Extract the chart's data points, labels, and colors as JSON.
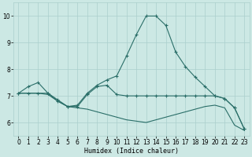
{
  "xlabel": "Humidex (Indice chaleur)",
  "x_ticks": [
    0,
    1,
    2,
    3,
    4,
    5,
    6,
    7,
    8,
    9,
    10,
    11,
    12,
    13,
    14,
    15,
    16,
    17,
    18,
    19,
    20,
    21,
    22,
    23
  ],
  "ylim": [
    5.5,
    10.5
  ],
  "xlim": [
    -0.5,
    23.5
  ],
  "yticks": [
    6,
    7,
    8,
    9,
    10
  ],
  "bg_color": "#cce8e4",
  "grid_color": "#aacfcc",
  "line_color": "#2a6e68",
  "line1_x": [
    0,
    1,
    2,
    3,
    4,
    5,
    6,
    7,
    8,
    9,
    10,
    11,
    12,
    13,
    14,
    15,
    16,
    17,
    18,
    19,
    20,
    21,
    22,
    23
  ],
  "line1_y": [
    7.1,
    7.35,
    7.5,
    7.1,
    6.8,
    6.6,
    6.65,
    7.1,
    7.4,
    7.6,
    7.75,
    8.5,
    9.3,
    10.0,
    10.0,
    9.65,
    8.65,
    8.1,
    7.7,
    7.35,
    7.0,
    6.9,
    6.55,
    5.75
  ],
  "line2_x": [
    0,
    1,
    2,
    3,
    4,
    5,
    6,
    7,
    8,
    9,
    10,
    11,
    12,
    13,
    14,
    15,
    16,
    17,
    18,
    19,
    20,
    21,
    22,
    23
  ],
  "line2_y": [
    7.1,
    7.1,
    7.1,
    7.1,
    6.85,
    6.6,
    6.6,
    7.05,
    7.35,
    7.4,
    7.05,
    7.0,
    7.0,
    7.0,
    7.0,
    7.0,
    7.0,
    7.0,
    7.0,
    7.0,
    7.0,
    6.9,
    6.55,
    5.75
  ],
  "line3_x": [
    0,
    1,
    2,
    3,
    4,
    5,
    6,
    7,
    8,
    9,
    10,
    11,
    12,
    13,
    14,
    15,
    16,
    17,
    18,
    19,
    20,
    21,
    22,
    23
  ],
  "line3_y": [
    7.1,
    7.1,
    7.1,
    7.05,
    6.8,
    6.6,
    6.55,
    6.5,
    6.4,
    6.3,
    6.2,
    6.1,
    6.05,
    6.0,
    6.1,
    6.2,
    6.3,
    6.4,
    6.5,
    6.6,
    6.65,
    6.55,
    5.9,
    5.7
  ],
  "xlabel_fontsize": 6,
  "tick_fontsize": 5.5
}
